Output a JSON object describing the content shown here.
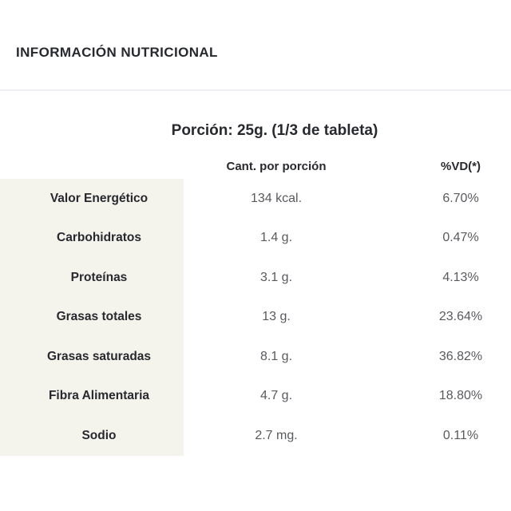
{
  "page": {
    "title": "INFORMACIÓN NUTRICIONAL"
  },
  "table": {
    "portion_heading": "Porción: 25g. (1/3 de tableta)",
    "columns": {
      "label": "",
      "quantity": "Cant. por porción",
      "daily_value": "%VD(*)"
    },
    "rows": [
      {
        "label": "Valor Energético",
        "quantity": "134 kcal.",
        "daily_value": "6.70%"
      },
      {
        "label": "Carbohidratos",
        "quantity": "1.4 g.",
        "daily_value": "0.47%"
      },
      {
        "label": "Proteínas",
        "quantity": "3.1 g.",
        "daily_value": "4.13%"
      },
      {
        "label": "Grasas totales",
        "quantity": "13 g.",
        "daily_value": "23.64%"
      },
      {
        "label": "Grasas saturadas",
        "quantity": "8.1 g.",
        "daily_value": "36.82%"
      },
      {
        "label": "Fibra Alimentaria",
        "quantity": "4.7 g.",
        "daily_value": "18.80%"
      },
      {
        "label": "Sodio",
        "quantity": "2.7 mg.",
        "daily_value": "0.11%"
      }
    ]
  },
  "colors": {
    "label_column_bg": "#f4f3ec",
    "heading_text": "#27292f",
    "value_text": "#595a5e",
    "divider": "#f0f0f4",
    "background": "#ffffff"
  }
}
